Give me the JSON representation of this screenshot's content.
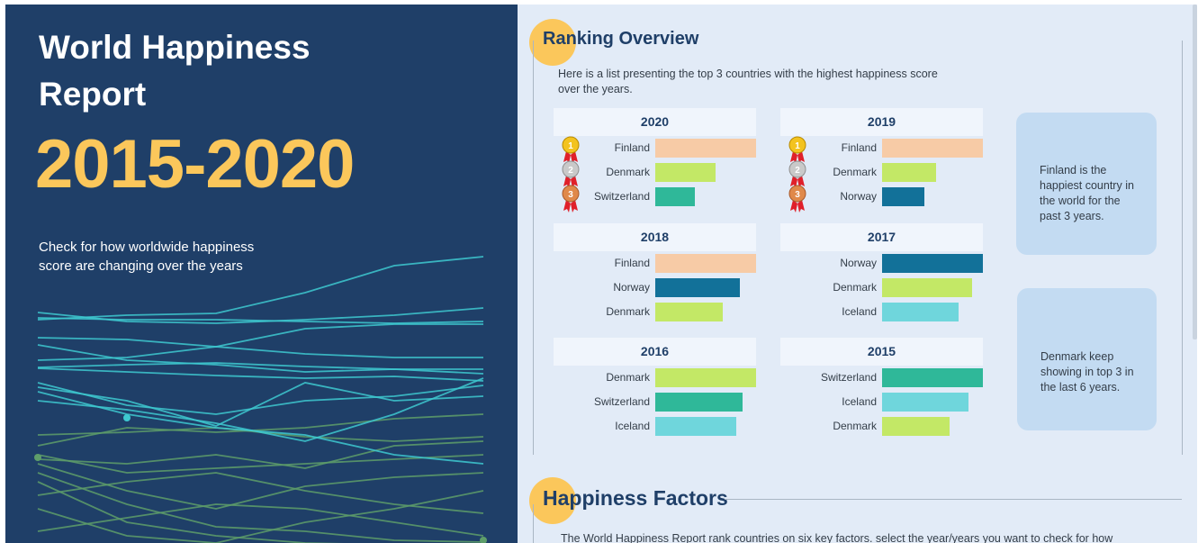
{
  "hero": {
    "title": "World Happiness Report",
    "years": "2015-2020",
    "description": "Check for how worldwide happiness score are changing over the years"
  },
  "ranking": {
    "title": "Ranking Overview",
    "intro": "Here is a list presenting the top 3 countries with the highest happiness score over the years.",
    "years": [
      {
        "year": "2020",
        "medals": true,
        "rows": [
          {
            "country": "Finland",
            "color": "#f7cba6",
            "value": 1.0
          },
          {
            "country": "Denmark",
            "color": "#c3e866",
            "value": 0.6
          },
          {
            "country": "Switzerland",
            "color": "#2fb899",
            "value": 0.39
          }
        ]
      },
      {
        "year": "2019",
        "medals": true,
        "rows": [
          {
            "country": "Finland",
            "color": "#f7cba6",
            "value": 1.0
          },
          {
            "country": "Denmark",
            "color": "#c3e866",
            "value": 0.54
          },
          {
            "country": "Norway",
            "color": "#127199",
            "value": 0.42
          }
        ]
      },
      {
        "year": "2018",
        "medals": false,
        "rows": [
          {
            "country": "Finland",
            "color": "#f7cba6",
            "value": 1.0
          },
          {
            "country": "Norway",
            "color": "#127199",
            "value": 0.84
          },
          {
            "country": "Denmark",
            "color": "#c3e866",
            "value": 0.67
          }
        ]
      },
      {
        "year": "2017",
        "medals": false,
        "rows": [
          {
            "country": "Norway",
            "color": "#127199",
            "value": 1.0
          },
          {
            "country": "Denmark",
            "color": "#c3e866",
            "value": 0.89
          },
          {
            "country": "Iceland",
            "color": "#6fd6dc",
            "value": 0.76
          }
        ]
      },
      {
        "year": "2016",
        "medals": false,
        "rows": [
          {
            "country": "Denmark",
            "color": "#c3e866",
            "value": 1.0
          },
          {
            "country": "Switzerland",
            "color": "#2fb899",
            "value": 0.87
          },
          {
            "country": "Iceland",
            "color": "#6fd6dc",
            "value": 0.8
          }
        ]
      },
      {
        "year": "2015",
        "medals": false,
        "rows": [
          {
            "country": "Switzerland",
            "color": "#2fb899",
            "value": 1.0
          },
          {
            "country": "Iceland",
            "color": "#6fd6dc",
            "value": 0.86
          },
          {
            "country": "Denmark",
            "color": "#c3e866",
            "value": 0.67
          }
        ]
      }
    ],
    "callouts": [
      "Finland is the happiest country in the world for the past 3 years.",
      "Denmark keep showing in top 3 in the last 6 years."
    ]
  },
  "factors": {
    "title": "Happiness Factors",
    "intro": "The World Happiness Report rank countries on six key factors. select the year/years you want to check for how"
  },
  "colors": {
    "navy": "#1f3f68",
    "accent": "#fbc75b",
    "trend_cyan": "#3ec9d0",
    "trend_green": "#5e9e6a"
  }
}
